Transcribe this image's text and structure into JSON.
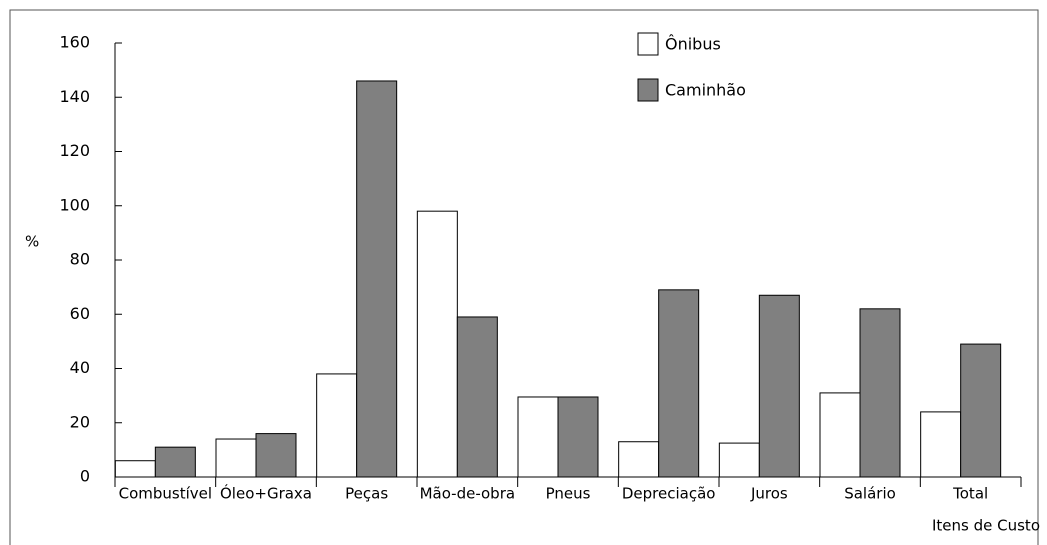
{
  "chart_data": {
    "type": "bar",
    "categories": [
      "Combustível",
      "Óleo+Graxa",
      "Peças",
      "Mão-de-obra",
      "Pneus",
      "Depreciação",
      "Juros",
      "Salário",
      "Total"
    ],
    "series": [
      {
        "name": "Ônibus",
        "color": "#ffffff",
        "values": [
          6,
          14,
          38,
          98,
          29.5,
          13,
          12.5,
          31,
          24
        ]
      },
      {
        "name": "Caminhão",
        "color": "#808080",
        "values": [
          11,
          16,
          146,
          59,
          29.5,
          69,
          67,
          62,
          49
        ]
      }
    ],
    "y_label": "%",
    "x_label": "Itens de Custo",
    "ylim": [
      0,
      160
    ],
    "yticks": [
      0,
      20,
      40,
      60,
      80,
      100,
      120,
      140,
      160
    ],
    "legend": "top-right"
  }
}
